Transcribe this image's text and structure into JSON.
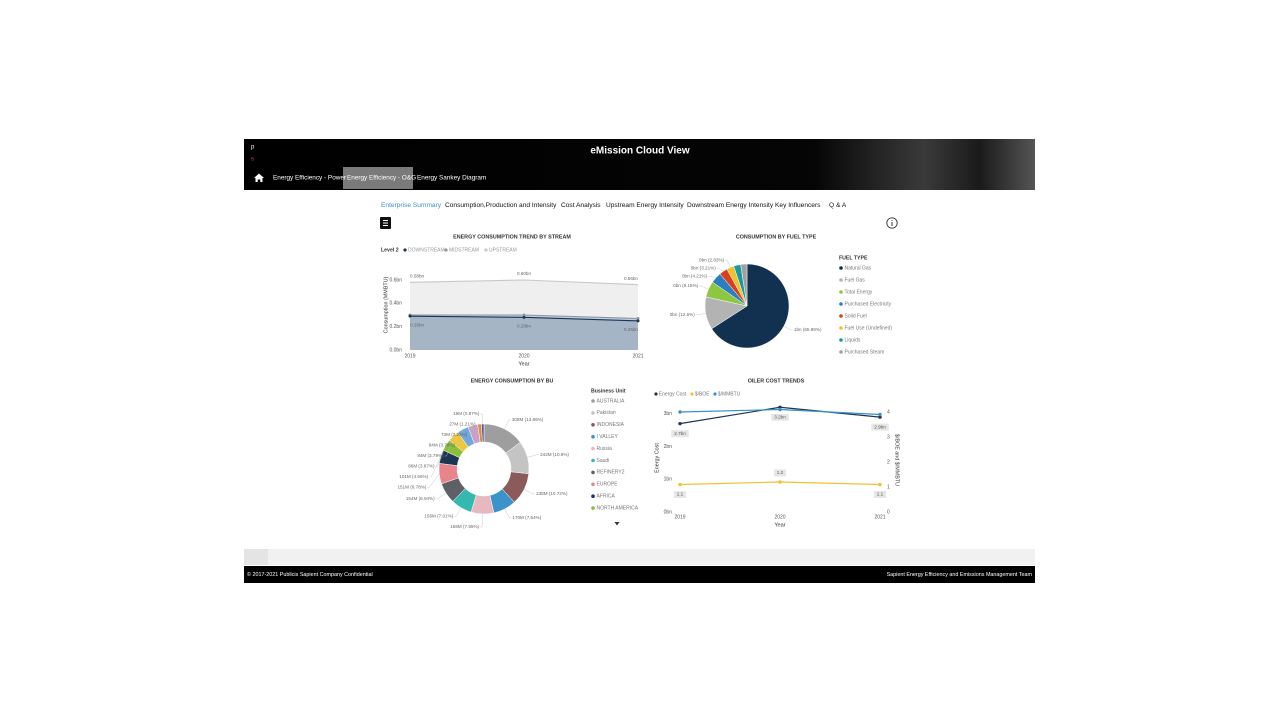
{
  "header": {
    "logo": [
      "p",
      "s"
    ],
    "title": "eMission Cloud View",
    "nav": [
      "Energy Efficiency - Power",
      "Energy Efficiency - O&G",
      "Energy Sankey Diagram"
    ]
  },
  "tabs": [
    "Enterprise Summary",
    "Consumption,Production and Intensity",
    "Cost Analysis",
    "Upstream Energy Intensity",
    "Downstream Energy Intensity",
    "Key Influencers",
    "Q & A"
  ],
  "chart_data": [
    {
      "type": "area",
      "title": "ENERGY CONSUMPTION TREND BY STREAM",
      "legend_title": "Level 2",
      "categories": [
        "2019",
        "2020",
        "2021"
      ],
      "x_label": "Year",
      "y_label": "Consumption (MMBTU)",
      "ylim": [
        0,
        0.78
      ],
      "yticks": [
        {
          "value": 0,
          "label": "0.0bn"
        },
        {
          "value": 0.2,
          "label": "0.2bn"
        },
        {
          "value": 0.4,
          "label": "0.4bn"
        },
        {
          "value": 0.6,
          "label": "0.6bn"
        }
      ],
      "series": [
        {
          "name": "DOWNSTREAM",
          "color": "#1c3552",
          "fill": "#a3b2c2",
          "values": [
            0.29,
            0.28,
            0.25
          ],
          "value_labels": [
            "0.29bn",
            "0.28bn",
            "0.25bn"
          ]
        },
        {
          "name": "MIDSTREAM",
          "color": "#8c96a0",
          "fill": "#b9c9da",
          "values": [
            0.3,
            0.3,
            0.27
          ]
        },
        {
          "name": "UPSTREAM",
          "color": "#c8c8c8",
          "fill": "#ededed",
          "values": [
            0.58,
            0.6,
            0.56
          ],
          "value_labels": [
            "0.58bn",
            "0.60bn",
            "0.56bn"
          ]
        }
      ]
    },
    {
      "type": "pie",
      "title": "CONSUMPTION BY FUEL TYPE",
      "legend_title": "FUEL TYPE",
      "categories": [
        "Natural Gas",
        "Fuel Gas",
        "Total Energy",
        "Purchased Electricity",
        "Solid Fuel",
        "Fuel Use (Undefined)",
        "Liquids",
        "Purchased Steam"
      ],
      "values": [
        65.89,
        12.6,
        6.15,
        4.21,
        3.21,
        2.83,
        2.71,
        2.4
      ],
      "value_labels": [
        "1bn (65.89%)",
        "0bn (12.6%)",
        "0bn (6.15%)",
        "0bn (4.21%)",
        "0bn (3.21%)",
        "0bn (2.83%)",
        null,
        null
      ],
      "colors": [
        "#12304f",
        "#b3b3b3",
        "#8dc63f",
        "#2a7fc1",
        "#d9401e",
        "#f2c12e",
        "#1a9aa0",
        "#a0a0a0"
      ]
    },
    {
      "type": "donut",
      "title": "ENERGY CONSUMPTION BY BU",
      "legend_title": "Business Unit",
      "categories": [
        "AUSTRALIA",
        "Pakistan",
        "INDONESIA",
        "I VALLEY",
        "Russia",
        "Saudi",
        "REFINERY2",
        "EUROPE",
        "AFRICA",
        "NORTH AMERICA",
        null,
        null,
        null,
        null,
        null
      ],
      "values": [
        308,
        242,
        238,
        170,
        168,
        156,
        154,
        151,
        101,
        86,
        84,
        84,
        73,
        27,
        19
      ],
      "value_labels": [
        "308M (13.86%)",
        "242M (10.9%)",
        "238M (10.72%)",
        "170M (7.64%)",
        "168M (7.55%)",
        "156M (7.01%)",
        "154M (6.94%)",
        "151M (6.78%)",
        "101M (4.56%)",
        "86M (3.87%)",
        "84M (3.79%)",
        "84M (3.78%)",
        "73M (3.28%)",
        "27M (1.21%)",
        "19M (0.87%)"
      ],
      "colors": [
        "#9e9e9e",
        "#c4c4c4",
        "#8b5a5a",
        "#3a93c9",
        "#e8b8c0",
        "#35b8b0",
        "#5d6166",
        "#e8848c",
        "#1b3553",
        "#8bbf3a",
        "#f0c63a",
        "#6fa8dc",
        "#c9a0c8",
        "#d98c40",
        "#5b5b9b"
      ]
    },
    {
      "type": "line",
      "title": "OILER COST TRENDS",
      "categories": [
        "2019",
        "2020",
        "2021"
      ],
      "x_label": "Year",
      "y_label": "Energy Cost",
      "y2_label": "$/BOE and $/MMBTU",
      "ylim": [
        0,
        3.27
      ],
      "yticks": [
        {
          "value": 0,
          "label": "0bn"
        },
        {
          "value": 1,
          "label": "1bn"
        },
        {
          "value": 2,
          "label": "2bn"
        },
        {
          "value": 3,
          "label": "3bn"
        }
      ],
      "y2lim": [
        0,
        4.28
      ],
      "y2ticks": [
        0,
        1,
        2,
        3,
        4
      ],
      "series": [
        {
          "name": "Energy Cost",
          "color": "#1c3552",
          "values": [
            2.7,
            3.2,
            2.9
          ],
          "value_labels": [
            "2.7bn",
            "3.2bn",
            "2.9bn"
          ]
        },
        {
          "name": "$/BOE",
          "color": "#f2c12e",
          "axis": "y2",
          "values": [
            1.1,
            1.2,
            1.1
          ],
          "labels": true
        },
        {
          "name": "$/MMBTU",
          "color": "#3a8fc9",
          "axis": "y2",
          "values": [
            4,
            4.1,
            3.9
          ]
        }
      ]
    }
  ],
  "footer": {
    "left": "© 2017-2021 Publicis Sapient Company Confidential",
    "right": "Sapient Energy Efficiency and Emissions Management Team"
  }
}
